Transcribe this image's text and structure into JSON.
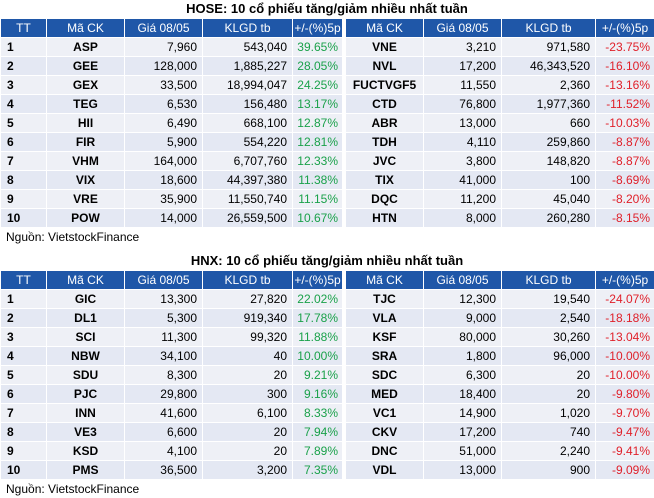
{
  "hose": {
    "title": "HOSE: 10 cổ phiếu tăng/giảm nhiều nhất tuần",
    "headers_left": [
      "TT",
      "Mã CK",
      "Giá 08/05",
      "KLGD tb",
      "+/-(%)5p"
    ],
    "headers_right": [
      "Mã CK",
      "Giá 08/05",
      "KLGD tb",
      "+/-(%)5p"
    ],
    "rows": [
      {
        "tt": "1",
        "up_code": "ASP",
        "up_price": "7,960",
        "up_vol": "543,040",
        "up_pct": "39.65%",
        "dn_code": "VNE",
        "dn_price": "3,210",
        "dn_vol": "971,580",
        "dn_pct": "-23.75%"
      },
      {
        "tt": "2",
        "up_code": "GEE",
        "up_price": "128,000",
        "up_vol": "1,885,227",
        "up_pct": "28.05%",
        "dn_code": "NVL",
        "dn_price": "17,200",
        "dn_vol": "46,343,520",
        "dn_pct": "-16.10%"
      },
      {
        "tt": "3",
        "up_code": "GEX",
        "up_price": "33,500",
        "up_vol": "18,994,047",
        "up_pct": "24.25%",
        "dn_code": "FUCTVGF5",
        "dn_price": "11,550",
        "dn_vol": "2,360",
        "dn_pct": "-13.16%"
      },
      {
        "tt": "4",
        "up_code": "TEG",
        "up_price": "6,530",
        "up_vol": "156,480",
        "up_pct": "13.17%",
        "dn_code": "CTD",
        "dn_price": "76,800",
        "dn_vol": "1,977,360",
        "dn_pct": "-11.52%"
      },
      {
        "tt": "5",
        "up_code": "HII",
        "up_price": "6,490",
        "up_vol": "668,100",
        "up_pct": "12.87%",
        "dn_code": "ABR",
        "dn_price": "13,000",
        "dn_vol": "660",
        "dn_pct": "-10.03%"
      },
      {
        "tt": "6",
        "up_code": "FIR",
        "up_price": "5,900",
        "up_vol": "554,220",
        "up_pct": "12.81%",
        "dn_code": "TDH",
        "dn_price": "4,110",
        "dn_vol": "259,860",
        "dn_pct": "-8.87%"
      },
      {
        "tt": "7",
        "up_code": "VHM",
        "up_price": "164,000",
        "up_vol": "6,707,760",
        "up_pct": "12.33%",
        "dn_code": "JVC",
        "dn_price": "3,800",
        "dn_vol": "148,820",
        "dn_pct": "-8.87%"
      },
      {
        "tt": "8",
        "up_code": "VIX",
        "up_price": "18,600",
        "up_vol": "44,397,380",
        "up_pct": "11.38%",
        "dn_code": "TIX",
        "dn_price": "41,000",
        "dn_vol": "100",
        "dn_pct": "-8.69%"
      },
      {
        "tt": "9",
        "up_code": "VRE",
        "up_price": "35,900",
        "up_vol": "11,550,740",
        "up_pct": "11.15%",
        "dn_code": "DQC",
        "dn_price": "11,200",
        "dn_vol": "45,040",
        "dn_pct": "-8.20%"
      },
      {
        "tt": "10",
        "up_code": "POW",
        "up_price": "14,000",
        "up_vol": "26,559,500",
        "up_pct": "10.67%",
        "dn_code": "HTN",
        "dn_price": "8,000",
        "dn_vol": "260,280",
        "dn_pct": "-8.15%"
      }
    ],
    "source": "Nguồn: VietstockFinance"
  },
  "hnx": {
    "title": "HNX: 10 cổ phiếu tăng/giảm nhiều nhất tuần",
    "headers_left": [
      "TT",
      "Mã CK",
      "Giá 08/05",
      "KLGD tb",
      "+/-(%)5p"
    ],
    "headers_right": [
      "Mã CK",
      "Giá 08/05",
      "KLGD tb",
      "+/-(%)5p"
    ],
    "rows": [
      {
        "tt": "1",
        "up_code": "GIC",
        "up_price": "13,300",
        "up_vol": "27,820",
        "up_pct": "22.02%",
        "dn_code": "TJC",
        "dn_price": "12,300",
        "dn_vol": "19,540",
        "dn_pct": "-24.07%"
      },
      {
        "tt": "2",
        "up_code": "DL1",
        "up_price": "5,300",
        "up_vol": "919,340",
        "up_pct": "17.78%",
        "dn_code": "VLA",
        "dn_price": "9,000",
        "dn_vol": "2,540",
        "dn_pct": "-18.18%"
      },
      {
        "tt": "3",
        "up_code": "SCI",
        "up_price": "11,300",
        "up_vol": "99,320",
        "up_pct": "11.88%",
        "dn_code": "KSF",
        "dn_price": "80,000",
        "dn_vol": "30,260",
        "dn_pct": "-13.04%"
      },
      {
        "tt": "4",
        "up_code": "NBW",
        "up_price": "34,100",
        "up_vol": "40",
        "up_pct": "10.00%",
        "dn_code": "SRA",
        "dn_price": "1,800",
        "dn_vol": "96,000",
        "dn_pct": "-10.00%"
      },
      {
        "tt": "5",
        "up_code": "SDU",
        "up_price": "8,300",
        "up_vol": "20",
        "up_pct": "9.21%",
        "dn_code": "SDC",
        "dn_price": "6,300",
        "dn_vol": "20",
        "dn_pct": "-10.00%"
      },
      {
        "tt": "6",
        "up_code": "PJC",
        "up_price": "29,800",
        "up_vol": "300",
        "up_pct": "9.16%",
        "dn_code": "MED",
        "dn_price": "18,400",
        "dn_vol": "20",
        "dn_pct": "-9.80%"
      },
      {
        "tt": "7",
        "up_code": "INN",
        "up_price": "41,600",
        "up_vol": "6,100",
        "up_pct": "8.33%",
        "dn_code": "VC1",
        "dn_price": "14,900",
        "dn_vol": "1,020",
        "dn_pct": "-9.70%"
      },
      {
        "tt": "8",
        "up_code": "VE3",
        "up_price": "6,600",
        "up_vol": "20",
        "up_pct": "7.94%",
        "dn_code": "CKV",
        "dn_price": "17,200",
        "dn_vol": "740",
        "dn_pct": "-9.47%"
      },
      {
        "tt": "9",
        "up_code": "KSD",
        "up_price": "4,100",
        "up_vol": "20",
        "up_pct": "7.89%",
        "dn_code": "DNC",
        "dn_price": "51,000",
        "dn_vol": "2,240",
        "dn_pct": "-9.41%"
      },
      {
        "tt": "10",
        "up_code": "PMS",
        "up_price": "36,500",
        "up_vol": "3,200",
        "up_pct": "7.35%",
        "dn_code": "VDL",
        "dn_price": "13,000",
        "dn_vol": "900",
        "dn_pct": "-9.09%"
      }
    ],
    "source": "Nguồn: VietstockFinance"
  },
  "colors": {
    "header_bg": "#1f57a8",
    "gain": "#1aa14a",
    "loss": "#e0202a"
  }
}
